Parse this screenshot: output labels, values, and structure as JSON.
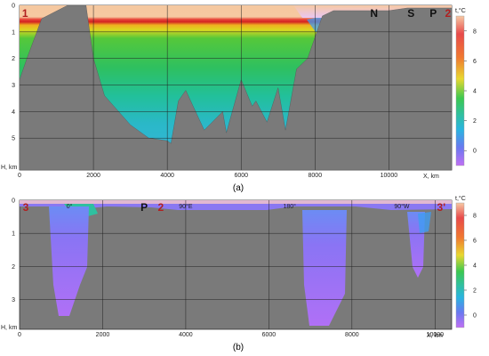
{
  "chart_data": [
    {
      "type": "heatmap",
      "caption": "(a)",
      "xlabel": "X, km",
      "ylabel": "H, km",
      "x_ticks": [
        0,
        2000,
        4000,
        6000,
        8000,
        10000
      ],
      "y_ticks": [
        0,
        1,
        2,
        3,
        4,
        5
      ],
      "xlim": [
        0,
        11700
      ],
      "ylim": [
        0,
        6.2
      ],
      "colorbar": {
        "label": "t,°C",
        "ticks": [
          0,
          2,
          4,
          6,
          8
        ],
        "range": [
          -1,
          9
        ]
      },
      "point_labels": [
        {
          "text": "1",
          "x": 150,
          "color": "red"
        },
        {
          "text": "N",
          "x": 9600,
          "color": "black"
        },
        {
          "text": "S",
          "x": 10600,
          "color": "black"
        },
        {
          "text": "P",
          "x": 11200,
          "color": "black"
        },
        {
          "text": "2",
          "x": 11600,
          "color": "red"
        }
      ],
      "bottom_depth_profile": {
        "x": [
          0,
          200,
          600,
          1300,
          1800,
          2000,
          2300,
          3000,
          3500,
          4000,
          4100,
          4300,
          4500,
          5000,
          5500,
          5600,
          6000,
          6300,
          6400,
          6700,
          7000,
          7200,
          7500,
          7800,
          8000,
          8200,
          8500,
          9000,
          9500,
          10000,
          10500,
          11000,
          11700
        ],
        "depth": [
          2.8,
          2.0,
          0.5,
          0.0,
          0.0,
          2.0,
          3.4,
          4.5,
          5.0,
          5.1,
          5.2,
          3.6,
          3.2,
          4.7,
          4.0,
          4.8,
          2.8,
          3.8,
          3.6,
          4.4,
          3.1,
          4.7,
          2.4,
          2.0,
          1.2,
          0.4,
          0.2,
          0.2,
          0.2,
          0.2,
          0.1,
          0.1,
          0.1
        ]
      }
    },
    {
      "type": "heatmap",
      "caption": "(b)",
      "xlabel": "X, km",
      "ylabel": "H, km",
      "x_ticks": [
        0,
        2000,
        4000,
        6000,
        8000,
        10000
      ],
      "y_ticks": [
        0,
        1,
        2,
        3
      ],
      "xlim": [
        0,
        10400
      ],
      "ylim": [
        0,
        3.9
      ],
      "colorbar": {
        "label": "t,°C",
        "ticks": [
          0,
          2,
          4,
          6,
          8
        ],
        "range": [
          -1,
          9
        ]
      },
      "point_labels": [
        {
          "text": "3",
          "x": 150,
          "color": "red"
        },
        {
          "text": "P",
          "x": 3000,
          "color": "black"
        },
        {
          "text": "2",
          "x": 3400,
          "color": "red"
        },
        {
          "text": "3'",
          "x": 10150,
          "color": "red"
        }
      ],
      "longitude_labels": [
        {
          "text": "0°",
          "x": 1200
        },
        {
          "text": "90°E",
          "x": 4000
        },
        {
          "text": "180°",
          "x": 6500
        },
        {
          "text": "90°W",
          "x": 9200
        }
      ]
    }
  ]
}
